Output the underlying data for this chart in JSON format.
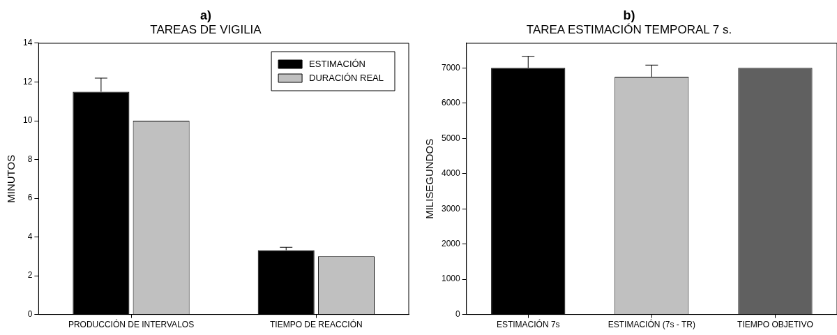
{
  "chart_data": [
    {
      "type": "bar",
      "title": "a)",
      "subtitle": "TAREAS DE VIGILIA",
      "ylabel": "MINUTOS",
      "categories": [
        "PRODUCCIÓN DE INTERVALOS",
        "TIEMPO DE REACCIÓN"
      ],
      "series": [
        {
          "name": "ESTIMACIÓN",
          "color": "#000000",
          "values": [
            11.5,
            3.32
          ],
          "errors": [
            [
              11.5,
              12.2
            ],
            [
              3.32,
              3.47
            ]
          ]
        },
        {
          "name": "DURACIÓN REAL",
          "color": "#c0c0c0",
          "values": [
            10,
            3
          ]
        }
      ],
      "ylim": [
        0,
        14
      ],
      "yticks": [
        0,
        2,
        4,
        6,
        8,
        10,
        12,
        14
      ],
      "legend": "top right"
    },
    {
      "type": "bar",
      "title": "b)",
      "subtitle": "TAREA ESTIMACIÓN TEMPORAL 7 s.",
      "ylabel": "MILISEGUNDOS",
      "categories": [
        "ESTIMACIÓN 7s",
        "ESTIMACIÓN (7s - TR)",
        "TIEMPO OBJETIVO"
      ],
      "values": [
        7000,
        6750,
        7000
      ],
      "colors": [
        "#000000",
        "#c0c0c0",
        "#606060"
      ],
      "errors": [
        [
          7000,
          7330
        ],
        [
          6750,
          7080
        ],
        null
      ],
      "ylim": [
        0,
        7700
      ],
      "yticks": [
        0,
        1000,
        2000,
        3000,
        4000,
        5000,
        6000,
        7000
      ]
    }
  ]
}
